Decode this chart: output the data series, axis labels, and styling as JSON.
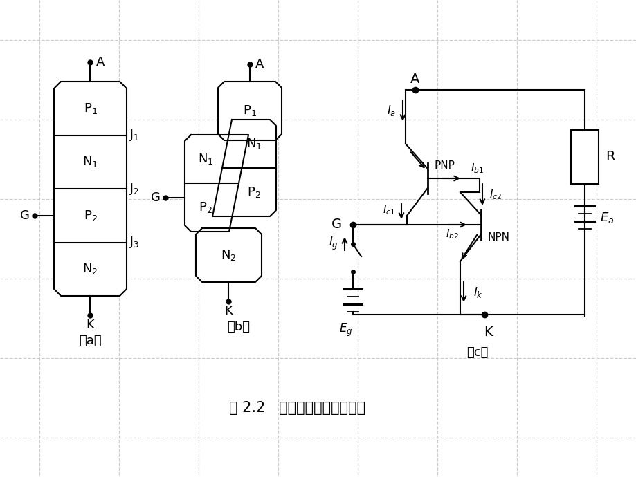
{
  "title": "图 2.2   晶闸管的内部工作过程",
  "bg_color": "#ffffff",
  "line_color": "#000000",
  "grid_color": "#cccccc",
  "fig_label_a": "（a）",
  "fig_label_b": "（b）",
  "fig_label_c": "（c）"
}
